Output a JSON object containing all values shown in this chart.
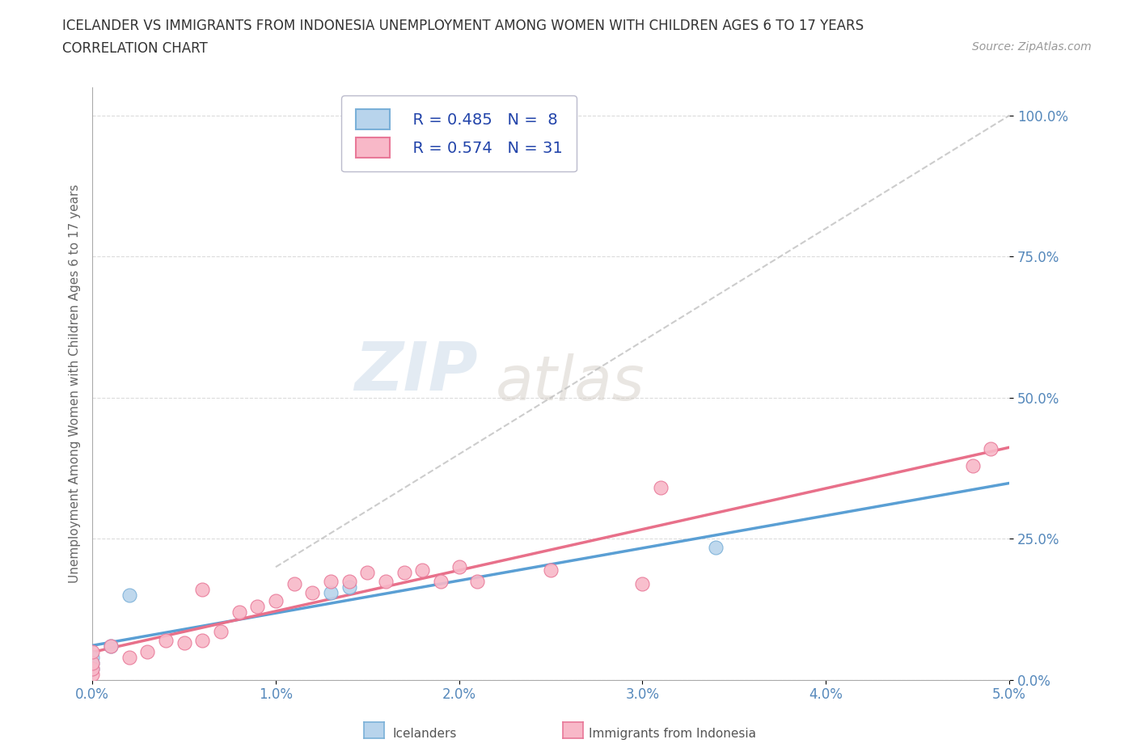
{
  "title_line1": "ICELANDER VS IMMIGRANTS FROM INDONESIA UNEMPLOYMENT AMONG WOMEN WITH CHILDREN AGES 6 TO 17 YEARS",
  "title_line2": "CORRELATION CHART",
  "source_text": "Source: ZipAtlas.com",
  "ylabel": "Unemployment Among Women with Children Ages 6 to 17 years",
  "xlim": [
    0.0,
    0.05
  ],
  "ylim": [
    0.0,
    1.05
  ],
  "xtick_labels": [
    "0.0%",
    "1.0%",
    "2.0%",
    "3.0%",
    "4.0%",
    "5.0%"
  ],
  "ytick_labels": [
    "0.0%",
    "25.0%",
    "50.0%",
    "75.0%",
    "100.0%"
  ],
  "ytick_values": [
    0.0,
    0.25,
    0.5,
    0.75,
    1.0
  ],
  "xtick_values": [
    0.0,
    0.01,
    0.02,
    0.03,
    0.04,
    0.05
  ],
  "watermark_zip": "ZIP",
  "watermark_atlas": "atlas",
  "legend_r1": "R = 0.485",
  "legend_n1": "N =  8",
  "legend_r2": "R = 0.574",
  "legend_n2": "N = 31",
  "color_icelander_fill": "#b8d4ec",
  "color_icelander_edge": "#7ab0d8",
  "color_indonesia_fill": "#f8b8c8",
  "color_indonesia_edge": "#e87898",
  "color_line_icelander": "#5a9fd4",
  "color_line_indonesia": "#e8708a",
  "color_line_dashed": "#c0c0c0",
  "color_ytick": "#5588bb",
  "color_xtick": "#5588bb",
  "color_grid": "#d8d8d8",
  "icelander_x": [
    0.0,
    0.0,
    0.0,
    0.001,
    0.002,
    0.013,
    0.014,
    0.034
  ],
  "icelander_y": [
    0.02,
    0.03,
    0.04,
    0.06,
    0.15,
    0.155,
    0.165,
    0.235
  ],
  "indonesia_x": [
    0.0,
    0.0,
    0.0,
    0.0,
    0.001,
    0.002,
    0.003,
    0.004,
    0.005,
    0.006,
    0.006,
    0.007,
    0.008,
    0.009,
    0.01,
    0.011,
    0.012,
    0.013,
    0.014,
    0.015,
    0.016,
    0.017,
    0.018,
    0.019,
    0.02,
    0.021,
    0.025,
    0.03,
    0.031,
    0.048,
    0.049
  ],
  "indonesia_y": [
    0.01,
    0.02,
    0.03,
    0.05,
    0.06,
    0.04,
    0.05,
    0.07,
    0.065,
    0.07,
    0.16,
    0.085,
    0.12,
    0.13,
    0.14,
    0.17,
    0.155,
    0.175,
    0.175,
    0.19,
    0.175,
    0.19,
    0.195,
    0.175,
    0.2,
    0.175,
    0.195,
    0.17,
    0.34,
    0.38,
    0.41
  ],
  "background_color": "#ffffff"
}
